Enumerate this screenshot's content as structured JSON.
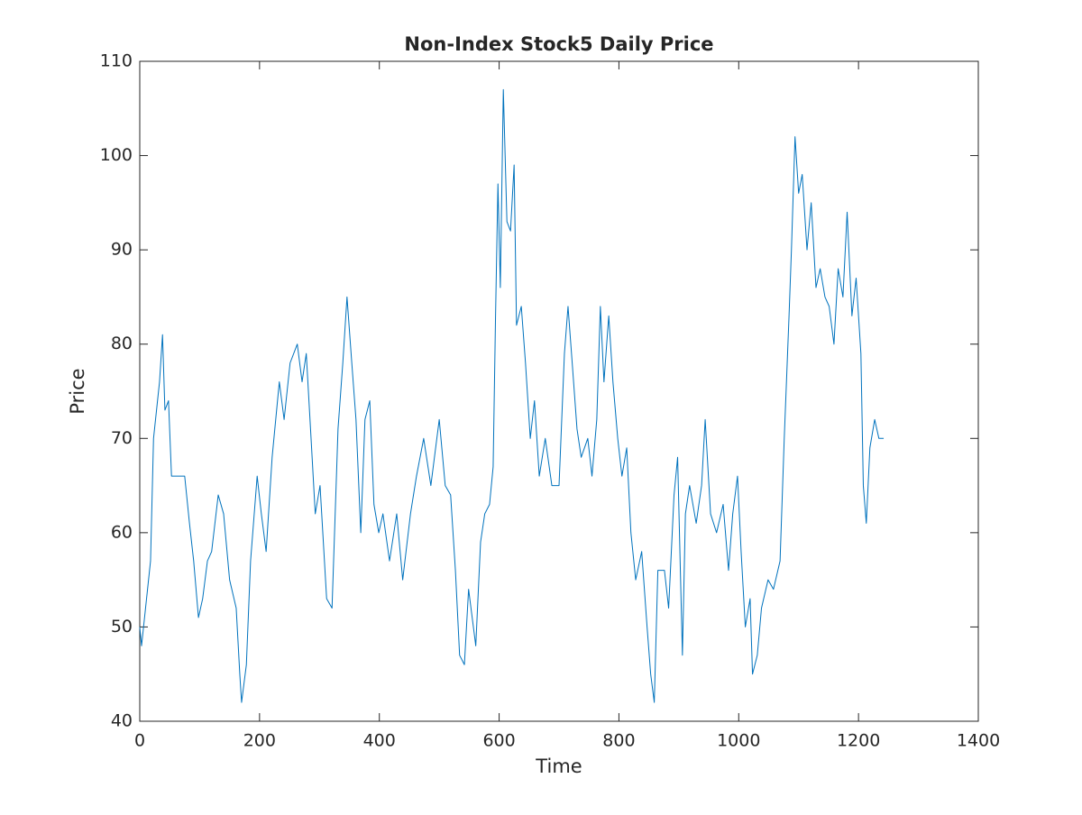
{
  "chart_data": {
    "type": "line",
    "title": "Non-Index Stock5 Daily Price",
    "x_label": "Time",
    "y_label": "Price",
    "xlim": [
      0,
      1400
    ],
    "xticks": [
      0,
      200,
      400,
      600,
      800,
      1000,
      1200,
      1400
    ],
    "ylim": [
      40,
      110
    ],
    "yticks": [
      40,
      50,
      60,
      70,
      80,
      90,
      100,
      110
    ],
    "x": [
      0,
      3,
      18,
      23,
      33,
      38,
      42,
      48,
      53,
      60,
      75,
      83,
      90,
      98,
      105,
      113,
      120,
      131,
      140,
      150,
      161,
      167,
      170,
      178,
      185,
      196,
      203,
      211,
      221,
      233,
      241,
      251,
      263,
      271,
      278,
      286,
      293,
      301,
      312,
      321,
      331,
      339,
      346,
      354,
      361,
      369,
      376,
      384,
      391,
      399,
      406,
      417,
      429,
      439,
      452,
      462,
      474,
      486,
      500,
      510,
      519,
      527,
      534,
      542,
      549,
      557,
      561,
      569,
      576,
      584,
      590,
      594,
      598,
      602,
      607,
      613,
      619,
      625,
      629,
      637,
      644,
      652,
      659,
      667,
      677,
      688,
      700,
      709,
      715,
      722,
      730,
      737,
      748,
      755,
      763,
      769,
      775,
      783,
      790,
      798,
      805,
      813,
      820,
      828,
      838,
      847,
      853,
      859,
      865,
      876,
      883,
      892,
      898,
      906,
      911,
      918,
      929,
      938,
      944,
      953,
      963,
      974,
      983,
      990,
      998,
      1004,
      1011,
      1019,
      1023,
      1031,
      1038,
      1049,
      1058,
      1069,
      1076,
      1084,
      1088,
      1094,
      1100,
      1106,
      1114,
      1121,
      1129,
      1136,
      1144,
      1151,
      1159,
      1166,
      1174,
      1181,
      1189,
      1196,
      1204,
      1208,
      1213,
      1219,
      1227,
      1234,
      1242
    ],
    "series": [
      {
        "name": "Price",
        "color": "#0072bd",
        "values": [
          50,
          48,
          57,
          70,
          76,
          81,
          73,
          74,
          66,
          66,
          66,
          61,
          57,
          51,
          53,
          57,
          58,
          64,
          62,
          55,
          52,
          45,
          42,
          46,
          57,
          66,
          62,
          58,
          68,
          76,
          72,
          78,
          80,
          76,
          79,
          70,
          62,
          65,
          53,
          52,
          71,
          78,
          85,
          78,
          72,
          60,
          72,
          74,
          63,
          60,
          62,
          57,
          62,
          55,
          62,
          66,
          70,
          65,
          72,
          65,
          64,
          56,
          47,
          46,
          54,
          50,
          48,
          59,
          62,
          63,
          67,
          83,
          97,
          86,
          107,
          93,
          92,
          99,
          82,
          84,
          78,
          70,
          74,
          66,
          70,
          65,
          65,
          79,
          84,
          78,
          71,
          68,
          70,
          66,
          72,
          84,
          76,
          83,
          76,
          70,
          66,
          69,
          60,
          55,
          58,
          50,
          45,
          42,
          56,
          56,
          52,
          64,
          68,
          47,
          62,
          65,
          61,
          65,
          72,
          62,
          60,
          63,
          56,
          62,
          66,
          58,
          50,
          53,
          45,
          47,
          52,
          55,
          54,
          57,
          70,
          83,
          90,
          102,
          96,
          98,
          90,
          95,
          86,
          88,
          85,
          84,
          80,
          88,
          85,
          94,
          83,
          87,
          79,
          65,
          61,
          69,
          72,
          70,
          70
        ]
      }
    ]
  }
}
